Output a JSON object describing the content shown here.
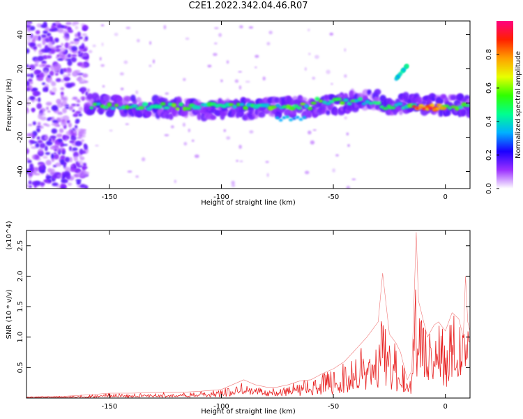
{
  "title": "C2E1.2022.342.04.46.R07",
  "colors": {
    "snr_line": "#e82020",
    "frame": "#000000"
  },
  "colorbar": {
    "label": "Normalized spectral amplitude",
    "ticks": [
      "0.0",
      "0.2",
      "0.4",
      "0.6",
      "0.8"
    ],
    "tick_values": [
      0.0,
      0.2,
      0.4,
      0.6,
      0.8
    ],
    "range": [
      0,
      1
    ],
    "colormap": [
      "#ffffff",
      "#9b30ff",
      "#1a00ff",
      "#00b0ff",
      "#00ff90",
      "#30ff00",
      "#e8ff00",
      "#ffa000",
      "#ff2000",
      "#ff0080"
    ]
  },
  "chart_data": [
    {
      "type": "heatmap",
      "title": "",
      "xlabel": "Height of straight line (km)",
      "ylabel": "Frequency (Hz)",
      "xlim": [
        -187,
        11
      ],
      "ylim": [
        -50,
        48
      ],
      "x_ticks": [
        -150,
        -100,
        -50,
        0
      ],
      "x_tick_labels": [
        "-150",
        "-100",
        "-50",
        "0"
      ],
      "y_ticks": [
        -40,
        -20,
        0,
        20,
        40
      ],
      "y_tick_labels": [
        "-40",
        "-20",
        "0",
        "20",
        "40"
      ],
      "colorbar_range": [
        0,
        1
      ],
      "features": [
        {
          "desc": "diffuse low-amplitude noise",
          "x_range": [
            -187,
            -160
          ],
          "freq_range": [
            -50,
            48
          ],
          "amplitude": 0.15
        },
        {
          "desc": "main echo band",
          "x_range": [
            -160,
            11
          ],
          "center_freq": -2,
          "amplitude": 0.5
        },
        {
          "desc": "secondary branch",
          "x_range": [
            -22,
            -17
          ],
          "freq_range": [
            14,
            22
          ],
          "amplitude": 0.45
        },
        {
          "desc": "weak echo",
          "x_range": [
            -75,
            -62
          ],
          "center_freq": -9,
          "amplitude": 0.35
        },
        {
          "desc": "peak echo",
          "x_range": [
            -14,
            0
          ],
          "center_freq": -3,
          "amplitude": 0.9
        }
      ]
    },
    {
      "type": "line",
      "title": "",
      "xlabel": "Height of straight line (km)",
      "ylabel": "SNR (10 * v/v)",
      "y_multiplier": "(x10^4)",
      "xlim": [
        -187,
        11
      ],
      "ylim": [
        0,
        2.75
      ],
      "x_ticks": [
        -150,
        -100,
        -50,
        0
      ],
      "x_tick_labels": [
        "-150",
        "-100",
        "-50",
        "0"
      ],
      "y_ticks": [
        0.5,
        1.0,
        1.5,
        2.0,
        2.5
      ],
      "y_tick_labels": [
        "0.5",
        "1.0",
        "1.5",
        "2.0",
        "2.5"
      ],
      "series": [
        {
          "color": "#e82020",
          "x": [
            -187,
            -170,
            -160,
            -150,
            -140,
            -130,
            -120,
            -110,
            -100,
            -95,
            -90,
            -85,
            -80,
            -75,
            -70,
            -65,
            -60,
            -55,
            -50,
            -45,
            -40,
            -35,
            -30,
            -28,
            -25,
            -22,
            -20,
            -17,
            -15,
            -13,
            -12,
            -10,
            -8,
            -5,
            -3,
            0,
            3,
            6,
            8,
            9,
            10,
            11
          ],
          "y": [
            0.02,
            0.03,
            0.05,
            0.08,
            0.08,
            0.09,
            0.09,
            0.11,
            0.14,
            0.22,
            0.3,
            0.22,
            0.18,
            0.18,
            0.22,
            0.28,
            0.3,
            0.4,
            0.48,
            0.6,
            0.8,
            1.0,
            1.25,
            2.05,
            1.05,
            0.9,
            0.75,
            0.3,
            0.45,
            2.72,
            1.6,
            1.3,
            1.0,
            1.2,
            1.25,
            1.1,
            1.4,
            1.3,
            1.0,
            2.0,
            1.25,
            1.1
          ]
        }
      ]
    }
  ]
}
